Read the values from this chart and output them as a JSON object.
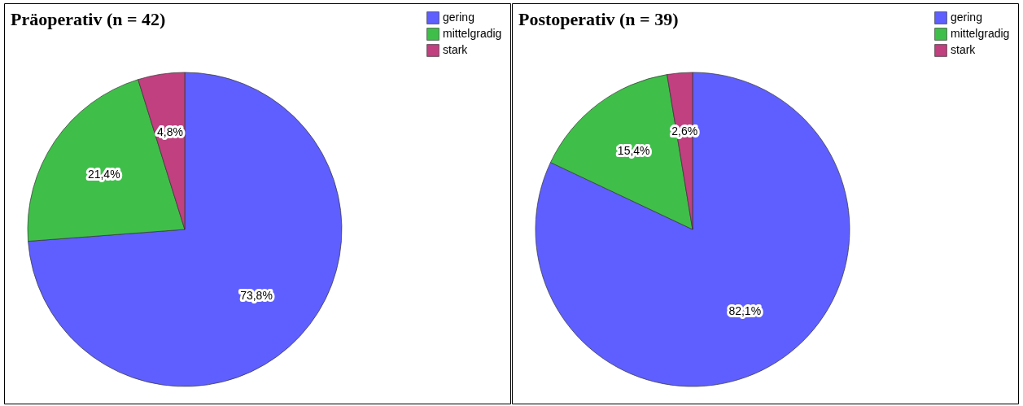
{
  "chart_data": [
    {
      "type": "pie",
      "title": "Präoperativ (n = 42)",
      "categories": [
        "gering",
        "mittelgradig",
        "stark"
      ],
      "values": [
        73.8,
        21.4,
        4.8
      ],
      "colors": [
        "#5f5fff",
        "#3fbf4a",
        "#c04080"
      ],
      "value_labels": [
        "73,8%",
        "21,4%",
        "4,8%"
      ],
      "legend": "top right"
    },
    {
      "type": "pie",
      "title": "Postoperativ (n = 39)",
      "categories": [
        "gering",
        "mittelgradig",
        "stark"
      ],
      "values": [
        82.1,
        15.4,
        2.6
      ],
      "colors": [
        "#5f5fff",
        "#3fbf4a",
        "#c04080"
      ],
      "value_labels": [
        "82,1%",
        "15,4%",
        "2,6%"
      ],
      "legend": "top right"
    }
  ]
}
